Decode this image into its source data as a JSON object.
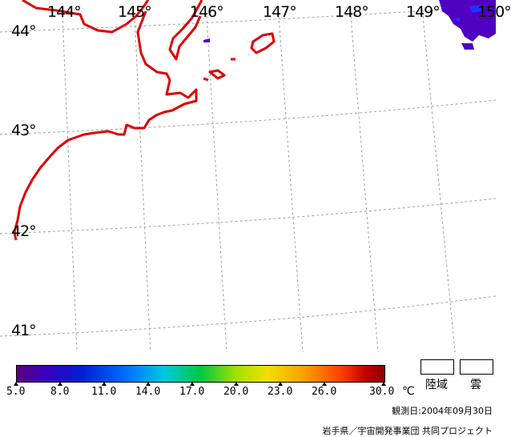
{
  "map": {
    "lon_labels": [
      "144°",
      "145°",
      "146°",
      "147°",
      "148°",
      "149°",
      "150°"
    ],
    "lat_labels": [
      "44°",
      "43°",
      "42°",
      "41°"
    ],
    "colors": {
      "coastline": "#e00000",
      "grid": "#a0a0a0",
      "cloud": "#5000c0",
      "background": "#ffffff"
    }
  },
  "legend": {
    "scale_values": [
      "5.0",
      "8.0",
      "11.0",
      "14.0",
      "17.0",
      "20.0",
      "23.0",
      "26.0",
      "30.0"
    ],
    "unit": "℃",
    "land_label": "陸域",
    "cloud_label": "雲"
  },
  "footer": {
    "observation_date": "観測日:2004年09月30日",
    "credit": "岩手県／宇宙開発事業団 共同プロジェクト"
  }
}
